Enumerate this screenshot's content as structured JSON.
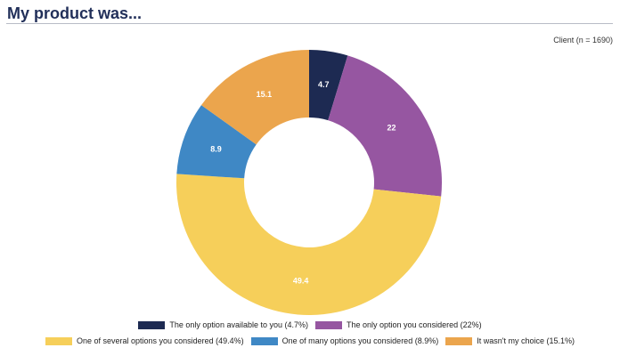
{
  "header": {
    "title": "My product was...",
    "subtitle": "Client (n = 1690)"
  },
  "chart_data": {
    "type": "pie",
    "variant": "donut",
    "title": "My product was...",
    "subtitle": "Client (n = 1690)",
    "legend_position": "bottom",
    "slices": [
      {
        "label": "The only option available to you (4.7%)",
        "value": 4.7,
        "display": "4.7",
        "color": "#1d2a52"
      },
      {
        "label": "The only option you considered (22%)",
        "value": 22,
        "display": "22",
        "color": "#9656a1"
      },
      {
        "label": "One of several options you considered (49.4%)",
        "value": 49.4,
        "display": "49.4",
        "color": "#f6cf5a"
      },
      {
        "label": "One of many options you considered (8.9%)",
        "value": 8.9,
        "display": "8.9",
        "color": "#3f88c5"
      },
      {
        "label": "It wasn't my choice (15.1%)",
        "value": 15.1,
        "display": "15.1",
        "color": "#eba54d"
      }
    ]
  }
}
